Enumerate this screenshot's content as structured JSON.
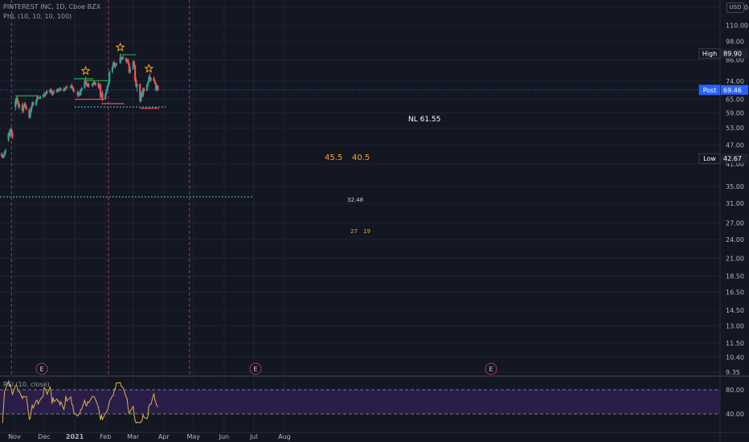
{
  "header": {
    "title": "PINTEREST INC, 1D, Cboe BZX",
    "indicator": "PHL (10, 10, 10, 100)",
    "currency": "USD"
  },
  "rsi": {
    "label": "RSI (10, close)",
    "levels": [
      "80.00",
      "40.00"
    ]
  },
  "colors": {
    "background": "#131722",
    "up": "#26a69a",
    "down": "#ef5350",
    "orange": "#f5a623",
    "rsi_fill": "#2a1e49",
    "rsi_line": "#e0b04f"
  },
  "markers": [
    {
      "text": "E",
      "label": "earnings-marker"
    },
    {
      "text": "E",
      "label": "earnings-marker"
    },
    {
      "text": "E",
      "label": "earnings-marker"
    }
  ],
  "chart_data": {
    "type": "candlestick",
    "title": "PINTEREST INC, 1D, Cboe BZX",
    "y_scale": "log",
    "y_ticks": [
      "125.00",
      "110.00",
      "98.00",
      "86.00",
      "74.00",
      "65.00",
      "59.00",
      "53.00",
      "47.00",
      "41.00",
      "35.00",
      "31.00",
      "27.00",
      "24.00",
      "21.00",
      "18.50",
      "16.50",
      "14.50",
      "13.00",
      "11.50",
      "10.40",
      "9.35"
    ],
    "x_ticks": [
      "Nov",
      "Dec",
      "2021",
      "Feb",
      "Mar",
      "Apr",
      "May",
      "Jun",
      "Jul",
      "Aug"
    ],
    "price_tags": [
      {
        "label": "High",
        "value": "89.90"
      },
      {
        "label": "Post",
        "value": "69.46"
      },
      {
        "label": "Low",
        "value": "42.67"
      }
    ],
    "annotations": {
      "neckline": "NL 61.55",
      "target_1": "45.5",
      "target_2": "40.5",
      "level": "32.48",
      "small_1": "27",
      "small_2": "19"
    },
    "ohlc": [
      [
        "2020-10-19",
        44.0,
        44.6,
        43.0,
        43.5
      ],
      [
        "2020-10-20",
        43.5,
        44.2,
        42.7,
        43.0
      ],
      [
        "2020-10-21",
        43.0,
        43.8,
        42.7,
        43.6
      ],
      [
        "2020-10-22",
        43.6,
        45.0,
        43.2,
        44.7
      ],
      [
        "2020-10-23",
        44.7,
        45.8,
        44.0,
        45.2
      ],
      [
        "2020-10-26",
        48.5,
        51.5,
        48.0,
        51.0
      ],
      [
        "2020-10-27",
        51.0,
        52.5,
        50.0,
        50.2
      ],
      [
        "2020-10-28",
        50.2,
        53.0,
        49.5,
        52.4
      ],
      [
        "2020-10-29",
        52.4,
        53.2,
        50.5,
        51.0
      ],
      [
        "2020-10-30",
        51.0,
        52.0,
        49.0,
        49.8
      ],
      [
        "2020-11-02",
        61.5,
        65.5,
        60.0,
        64.0
      ],
      [
        "2020-11-03",
        64.0,
        66.2,
        62.5,
        65.6
      ],
      [
        "2020-11-04",
        65.6,
        66.5,
        63.0,
        63.5
      ],
      [
        "2020-11-05",
        63.5,
        64.5,
        61.0,
        61.8
      ],
      [
        "2020-11-06",
        61.8,
        63.0,
        60.5,
        62.5
      ],
      [
        "2020-11-09",
        62.5,
        63.5,
        58.8,
        59.8
      ],
      [
        "2020-11-10",
        59.8,
        62.0,
        59.0,
        61.5
      ],
      [
        "2020-11-11",
        61.5,
        63.5,
        61.0,
        63.0
      ],
      [
        "2020-11-12",
        63.0,
        63.8,
        61.2,
        61.6
      ],
      [
        "2020-11-13",
        61.6,
        62.5,
        60.0,
        60.5
      ],
      [
        "2020-11-16",
        60.5,
        61.0,
        56.5,
        57.2
      ],
      [
        "2020-11-17",
        57.2,
        60.0,
        56.8,
        59.5
      ],
      [
        "2020-11-18",
        59.5,
        62.0,
        59.0,
        61.6
      ],
      [
        "2020-11-19",
        61.6,
        64.0,
        61.0,
        63.5
      ],
      [
        "2020-11-20",
        63.5,
        64.0,
        62.0,
        62.4
      ],
      [
        "2020-11-23",
        62.4,
        64.8,
        62.0,
        64.3
      ],
      [
        "2020-11-24",
        64.3,
        66.5,
        64.0,
        66.0
      ],
      [
        "2020-11-25",
        66.0,
        67.0,
        64.8,
        65.2
      ],
      [
        "2020-11-27",
        65.2,
        66.8,
        65.0,
        66.4
      ],
      [
        "2020-11-30",
        66.4,
        67.5,
        65.5,
        67.0
      ],
      [
        "2020-12-01",
        67.0,
        68.5,
        66.0,
        66.6
      ],
      [
        "2020-12-02",
        66.6,
        68.0,
        66.0,
        67.6
      ],
      [
        "2020-12-03",
        67.6,
        69.0,
        67.0,
        68.4
      ],
      [
        "2020-12-04",
        68.4,
        69.5,
        67.5,
        68.0
      ],
      [
        "2020-12-07",
        68.0,
        70.0,
        67.8,
        69.5
      ],
      [
        "2020-12-08",
        69.5,
        70.5,
        68.5,
        69.0
      ],
      [
        "2020-12-09",
        69.0,
        69.5,
        66.5,
        67.2
      ],
      [
        "2020-12-10",
        67.2,
        68.8,
        66.8,
        68.5
      ],
      [
        "2020-12-11",
        68.5,
        69.5,
        67.8,
        68.2
      ],
      [
        "2020-12-14",
        68.2,
        70.0,
        68.0,
        69.8
      ],
      [
        "2020-12-15",
        69.8,
        70.5,
        68.5,
        68.8
      ],
      [
        "2020-12-16",
        68.8,
        70.2,
        68.5,
        69.9
      ],
      [
        "2020-12-17",
        69.9,
        71.0,
        69.0,
        69.4
      ],
      [
        "2020-12-18",
        69.4,
        70.5,
        68.6,
        70.0
      ],
      [
        "2020-12-21",
        70.0,
        70.8,
        68.5,
        69.0
      ],
      [
        "2020-12-22",
        69.0,
        70.5,
        68.8,
        70.2
      ],
      [
        "2020-12-23",
        70.2,
        71.5,
        69.5,
        70.8
      ],
      [
        "2020-12-24",
        70.8,
        71.8,
        70.0,
        70.4
      ],
      [
        "2020-12-28",
        70.4,
        72.0,
        70.0,
        71.5
      ],
      [
        "2020-12-29",
        71.5,
        72.8,
        70.5,
        70.8
      ],
      [
        "2020-12-30",
        70.8,
        71.5,
        69.0,
        69.4
      ],
      [
        "2020-12-31",
        69.4,
        70.5,
        68.0,
        68.6
      ],
      [
        "2021-01-04",
        68.6,
        69.0,
        66.0,
        66.8
      ],
      [
        "2021-01-05",
        66.8,
        68.5,
        66.0,
        68.0
      ],
      [
        "2021-01-06",
        68.0,
        69.2,
        66.5,
        67.0
      ],
      [
        "2021-01-07",
        67.0,
        70.0,
        66.8,
        69.5
      ],
      [
        "2021-01-08",
        69.5,
        71.0,
        69.0,
        70.4
      ],
      [
        "2021-01-11",
        70.4,
        75.0,
        70.0,
        74.2
      ],
      [
        "2021-01-12",
        74.2,
        76.5,
        72.5,
        73.0
      ],
      [
        "2021-01-13",
        73.0,
        74.5,
        71.0,
        71.8
      ],
      [
        "2021-01-14",
        71.8,
        73.0,
        70.8,
        72.4
      ],
      [
        "2021-01-15",
        72.4,
        73.2,
        70.5,
        71.2
      ],
      [
        "2021-01-19",
        71.2,
        73.0,
        70.8,
        72.6
      ],
      [
        "2021-01-20",
        72.6,
        74.0,
        72.0,
        73.4
      ],
      [
        "2021-01-21",
        73.4,
        74.0,
        71.8,
        72.2
      ],
      [
        "2021-01-22",
        72.2,
        73.5,
        71.5,
        73.0
      ],
      [
        "2021-01-25",
        73.0,
        73.6,
        70.0,
        70.6
      ],
      [
        "2021-01-26",
        70.6,
        72.5,
        70.0,
        72.0
      ],
      [
        "2021-01-27",
        72.0,
        72.8,
        65.0,
        66.2
      ],
      [
        "2021-01-28",
        66.2,
        68.5,
        65.8,
        67.8
      ],
      [
        "2021-01-29",
        67.8,
        69.0,
        64.0,
        65.0
      ],
      [
        "2021-02-01",
        65.0,
        68.0,
        64.8,
        67.5
      ],
      [
        "2021-02-02",
        67.5,
        70.0,
        67.0,
        69.6
      ],
      [
        "2021-02-03",
        69.6,
        72.0,
        69.0,
        71.4
      ],
      [
        "2021-02-04",
        71.4,
        73.5,
        70.8,
        73.0
      ],
      [
        "2021-02-05",
        73.0,
        80.0,
        72.5,
        79.0
      ],
      [
        "2021-02-08",
        79.0,
        82.5,
        78.0,
        81.6
      ],
      [
        "2021-02-09",
        81.6,
        85.0,
        81.0,
        84.2
      ],
      [
        "2021-02-10",
        84.2,
        85.5,
        81.5,
        82.2
      ],
      [
        "2021-02-11",
        82.2,
        83.5,
        80.8,
        82.8
      ],
      [
        "2021-02-12",
        82.8,
        84.5,
        82.0,
        84.0
      ],
      [
        "2021-02-16",
        84.0,
        89.9,
        83.5,
        87.6
      ],
      [
        "2021-02-17",
        87.6,
        88.5,
        85.5,
        86.2
      ],
      [
        "2021-02-18",
        86.2,
        88.0,
        85.8,
        87.4
      ],
      [
        "2021-02-19",
        87.4,
        88.8,
        86.5,
        87.0
      ],
      [
        "2021-02-22",
        87.0,
        87.5,
        84.0,
        85.2
      ],
      [
        "2021-02-23",
        85.2,
        86.5,
        84.5,
        86.0
      ],
      [
        "2021-02-24",
        86.0,
        86.8,
        83.0,
        83.6
      ],
      [
        "2021-02-25",
        83.6,
        84.5,
        78.0,
        78.8
      ],
      [
        "2021-02-26",
        78.8,
        82.0,
        78.0,
        80.6
      ],
      [
        "2021-03-01",
        80.6,
        85.5,
        80.0,
        85.0
      ],
      [
        "2021-03-02",
        85.0,
        86.0,
        82.0,
        82.6
      ],
      [
        "2021-03-03",
        82.6,
        83.0,
        73.5,
        74.4
      ],
      [
        "2021-03-04",
        74.4,
        76.0,
        70.5,
        71.2
      ],
      [
        "2021-03-05",
        71.2,
        73.0,
        68.5,
        72.4
      ],
      [
        "2021-03-08",
        72.4,
        72.8,
        63.5,
        64.2
      ],
      [
        "2021-03-09",
        64.2,
        68.5,
        63.8,
        67.8
      ],
      [
        "2021-03-10",
        67.8,
        69.0,
        65.8,
        66.4
      ],
      [
        "2021-03-11",
        66.4,
        70.5,
        66.0,
        70.0
      ],
      [
        "2021-03-12",
        70.0,
        70.8,
        68.0,
        69.0
      ],
      [
        "2021-03-15",
        69.0,
        72.5,
        68.8,
        72.0
      ],
      [
        "2021-03-16",
        72.0,
        74.0,
        71.0,
        73.4
      ],
      [
        "2021-03-17",
        73.4,
        77.0,
        73.0,
        76.2
      ],
      [
        "2021-03-18",
        76.2,
        78.5,
        74.0,
        74.6
      ],
      [
        "2021-03-19",
        74.6,
        76.0,
        73.5,
        75.6
      ],
      [
        "2021-03-22",
        75.6,
        76.5,
        73.8,
        74.2
      ],
      [
        "2021-03-23",
        74.2,
        75.0,
        72.5,
        72.8
      ],
      [
        "2021-03-24",
        72.8,
        73.5,
        69.0,
        69.8
      ],
      [
        "2021-03-25",
        69.8,
        72.0,
        68.5,
        71.4
      ],
      [
        "2021-03-26",
        71.4,
        72.0,
        69.0,
        69.46
      ]
    ]
  }
}
